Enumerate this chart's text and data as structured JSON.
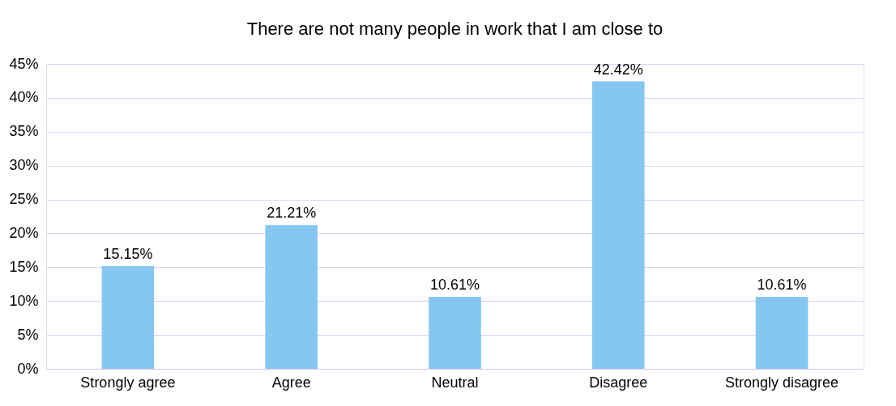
{
  "chart_data": {
    "type": "bar",
    "title": "There are not many people in work that I am close to",
    "categories": [
      "Strongly agree",
      "Agree",
      "Neutral",
      "Disagree",
      "Strongly disagree"
    ],
    "values": [
      15.15,
      21.21,
      10.61,
      42.42,
      10.61
    ],
    "value_labels": [
      "15.15%",
      "21.21%",
      "10.61%",
      "42.42%",
      "10.61%"
    ],
    "color": "#85c7f0",
    "ylim": [
      0,
      45
    ],
    "yticks": [
      {
        "value": 0,
        "label": "0%"
      },
      {
        "value": 5,
        "label": "5%"
      },
      {
        "value": 10,
        "label": "10%"
      },
      {
        "value": 15,
        "label": "15%"
      },
      {
        "value": 20,
        "label": "20%"
      },
      {
        "value": 25,
        "label": "25%"
      },
      {
        "value": 30,
        "label": "30%"
      },
      {
        "value": 35,
        "label": "35%"
      },
      {
        "value": 40,
        "label": "40%"
      },
      {
        "value": 45,
        "label": "45%"
      }
    ],
    "grid": "y"
  }
}
